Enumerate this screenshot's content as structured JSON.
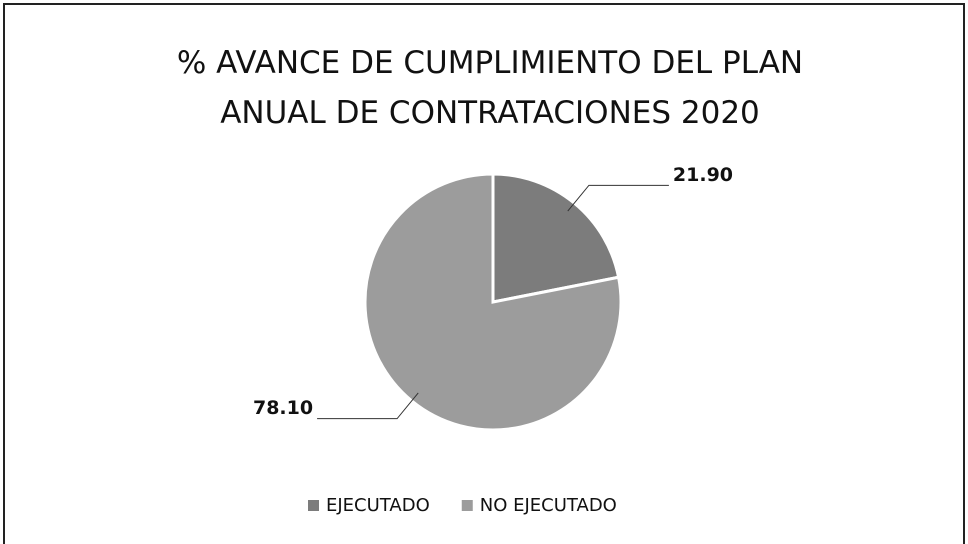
{
  "chart_data": {
    "type": "pie",
    "title": "% AVANCE DE CUMPLIMIENTO DEL PLAN ANUAL DE CONTRATACIONES 2020",
    "categories": [
      "EJECUTADO",
      "NO EJECUTADO"
    ],
    "values": [
      21.9,
      78.1
    ],
    "value_labels": [
      "21.90",
      "78.10"
    ],
    "colors": [
      "#7c7c7c",
      "#9c9c9c"
    ],
    "legend": "bottom"
  }
}
